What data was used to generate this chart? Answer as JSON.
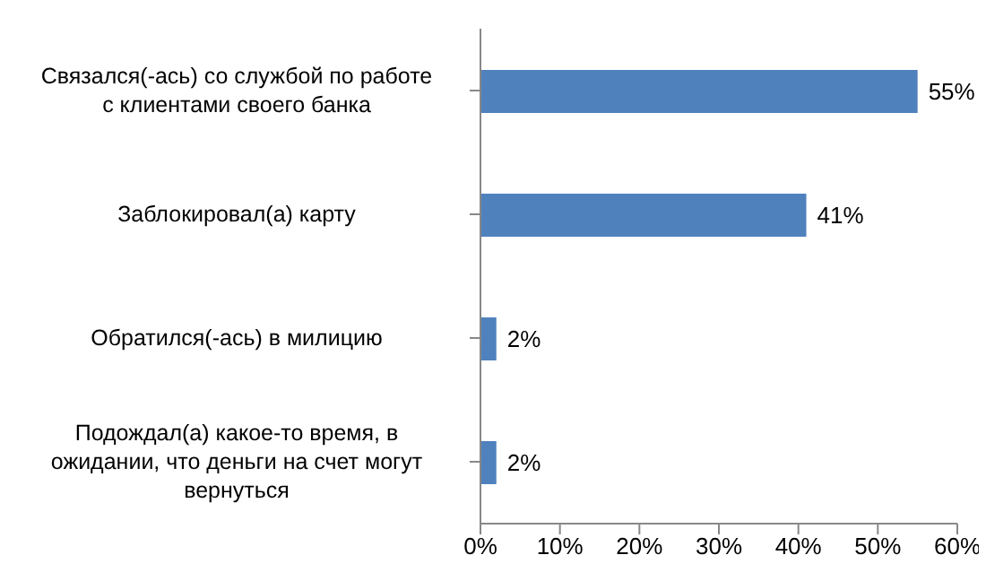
{
  "chart_data": {
    "type": "bar",
    "orientation": "horizontal",
    "categories": [
      "Связался(-ась) со службой по работе с клиентами своего банка",
      "Заблокировал(а) карту",
      "Обратился(-ась) в милицию",
      "Подождал(а) какое-то время, в ожидании, что деньги на счет могут вернуться"
    ],
    "values": [
      55,
      41,
      2,
      2
    ],
    "value_labels": [
      "55%",
      "41%",
      "2%",
      "2%"
    ],
    "color": "#4f81bd",
    "xlim": [
      0,
      60
    ],
    "xticks": [
      {
        "value": 0,
        "label": "0%"
      },
      {
        "value": 10,
        "label": "10%"
      },
      {
        "value": 20,
        "label": "20%"
      },
      {
        "value": 30,
        "label": "30%"
      },
      {
        "value": 40,
        "label": "40%"
      },
      {
        "value": 50,
        "label": "50%"
      },
      {
        "value": 60,
        "label": "60%"
      }
    ],
    "grid": false,
    "legend": false
  }
}
